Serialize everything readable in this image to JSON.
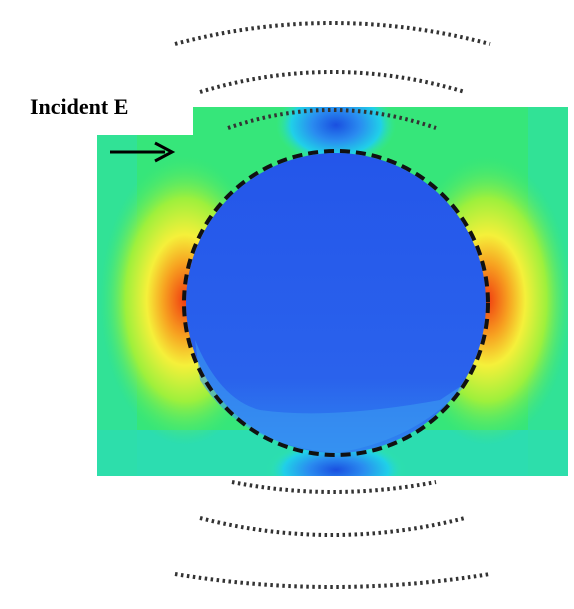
{
  "label": "Incident E"
}
